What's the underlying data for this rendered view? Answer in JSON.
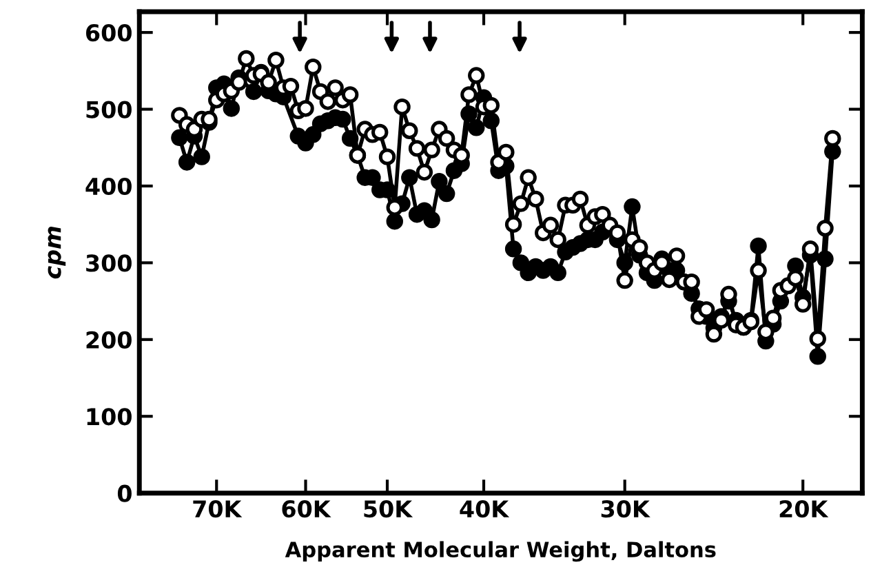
{
  "chart_data": {
    "type": "line",
    "xlabel": "Apparent Molecular Weight, Daltons",
    "ylabel": "cpm",
    "categories": [
      null,
      null,
      null,
      null,
      null,
      "70K",
      null,
      null,
      null,
      null,
      null,
      null,
      null,
      null,
      null,
      null,
      null,
      "60K",
      null,
      null,
      null,
      null,
      null,
      null,
      null,
      null,
      null,
      null,
      "50K",
      null,
      null,
      null,
      null,
      null,
      null,
      null,
      null,
      null,
      null,
      null,
      null,
      "40K",
      null,
      null,
      null,
      null,
      null,
      null,
      null,
      null,
      null,
      null,
      null,
      null,
      null,
      null,
      null,
      null,
      null,
      null,
      "30K",
      null,
      null,
      null,
      null,
      null,
      null,
      null,
      null,
      null,
      null,
      null,
      null,
      null,
      null,
      null,
      null,
      null,
      null,
      null,
      null,
      null,
      null,
      null,
      "20K",
      null,
      null,
      null,
      null
    ],
    "ylim": [
      0,
      627
    ],
    "yticks": [
      0,
      100,
      200,
      300,
      400,
      500,
      600
    ],
    "grid": false,
    "legend": false,
    "marker": "circle",
    "line_style": "solid",
    "series": [
      {
        "color": "#000000",
        "values": [
          463,
          431,
          465,
          438,
          483,
          528,
          533,
          501,
          541,
          null,
          523,
          548,
          524,
          520,
          516,
          null,
          465,
          456,
          467,
          481,
          485,
          489,
          487,
          462,
          440,
          411,
          411,
          395,
          395,
          354,
          377,
          411,
          363,
          368,
          356,
          406,
          390,
          420,
          429,
          494,
          476,
          515,
          485,
          420,
          426,
          318,
          300,
          287,
          295,
          290,
          295,
          287,
          314,
          320,
          325,
          330,
          330,
          340,
          345,
          330,
          300,
          373,
          310,
          287,
          277,
          305,
          290,
          290,
          275,
          260,
          240,
          230,
          215,
          230,
          250,
          225,
          216,
          225,
          322,
          198,
          220,
          250,
          270,
          296,
          255,
          310,
          178,
          305,
          445
        ]
      },
      {
        "color": "#000000",
        "values": [
          492,
          480,
          474,
          487,
          487,
          512,
          520,
          524,
          535,
          566,
          544,
          546,
          535,
          564,
          528,
          530,
          498,
          501,
          555,
          523,
          510,
          528,
          512,
          519,
          440,
          474,
          467,
          470,
          438,
          372,
          503,
          472,
          449,
          418,
          447,
          474,
          462,
          447,
          440,
          519,
          544,
          503,
          505,
          431,
          444,
          350,
          377,
          411,
          383,
          339,
          349,
          330,
          375,
          375,
          383,
          349,
          360,
          363,
          349,
          339,
          277,
          330,
          320,
          300,
          290,
          300,
          278,
          309,
          275,
          275,
          230,
          239,
          207,
          225,
          259,
          219,
          216,
          223,
          290,
          210,
          228,
          264,
          270,
          280,
          246,
          318,
          201,
          345,
          462
        ]
      }
    ]
  }
}
